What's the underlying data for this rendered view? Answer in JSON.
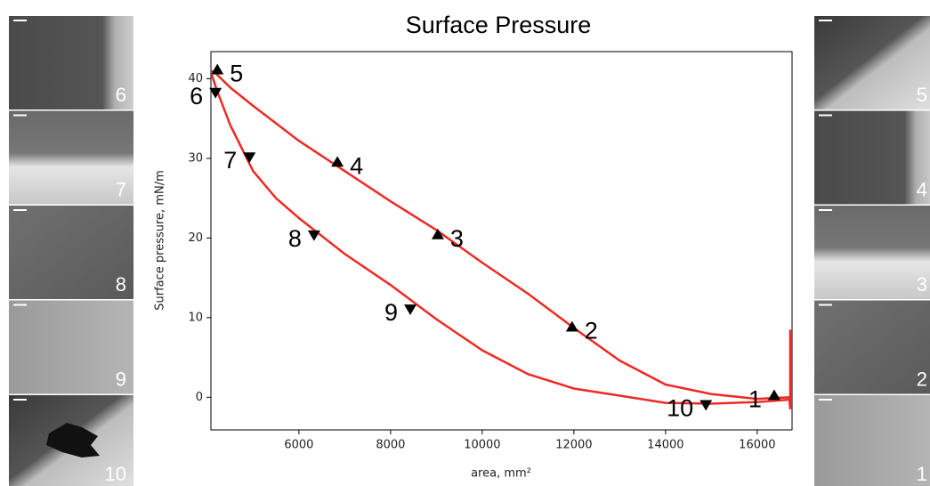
{
  "chart_data": {
    "type": "line",
    "title": "Surface Pressure",
    "xlabel": "area, mm²",
    "ylabel": "Surface pressure, mN/m",
    "xlim": [
      4080,
      16760
    ],
    "ylim": [
      -4.1,
      43.4
    ],
    "xticks": [
      6000,
      8000,
      10000,
      12000,
      14000,
      16000
    ],
    "yticks": [
      0,
      10,
      20,
      30,
      40
    ],
    "series": [
      {
        "color": "#ee2a24",
        "x": [
          16720,
          16720,
          16700,
          16000,
          15000,
          14000,
          13000,
          12000,
          11000,
          10000,
          9000,
          8000,
          7000,
          6000,
          5000,
          4500,
          4200,
          4100
        ],
        "values": [
          8.5,
          -1.5,
          0.0,
          -0.2,
          0.4,
          1.6,
          4.6,
          8.7,
          13.0,
          16.9,
          21.0,
          24.6,
          28.4,
          32.2,
          36.6,
          38.9,
          40.6,
          41.0
        ]
      },
      {
        "color": "#ee2a24",
        "x": [
          4100,
          4200,
          4500,
          5000,
          5500,
          6000,
          7000,
          8000,
          9000,
          10000,
          11000,
          12000,
          13000,
          14000,
          15000,
          16000,
          16700
        ],
        "values": [
          40.5,
          38.7,
          34.2,
          28.4,
          25.0,
          22.5,
          18.0,
          14.1,
          9.8,
          5.9,
          2.9,
          1.1,
          0.2,
          -0.7,
          -0.8,
          -0.6,
          -0.3
        ]
      }
    ],
    "markers": [
      {
        "marker": "up",
        "color": "#000000",
        "x": [
          16370,
          11960,
          9030,
          6840,
          4220
        ],
        "values": [
          0.2,
          8.8,
          20.4,
          29.5,
          41.1
        ],
        "labels": [
          "1",
          "2",
          "3",
          "4",
          "5"
        ]
      },
      {
        "marker": "down",
        "color": "#000000",
        "x": [
          4180,
          4920,
          6330,
          8430,
          14880
        ],
        "values": [
          38.3,
          30.2,
          20.4,
          11.1,
          -0.9
        ],
        "labels": [
          "6",
          "7",
          "8",
          "9",
          "10"
        ]
      }
    ]
  },
  "left_images": [
    "6",
    "7",
    "8",
    "9",
    "10"
  ],
  "right_images": [
    "5",
    "4",
    "3",
    "2",
    "1"
  ]
}
